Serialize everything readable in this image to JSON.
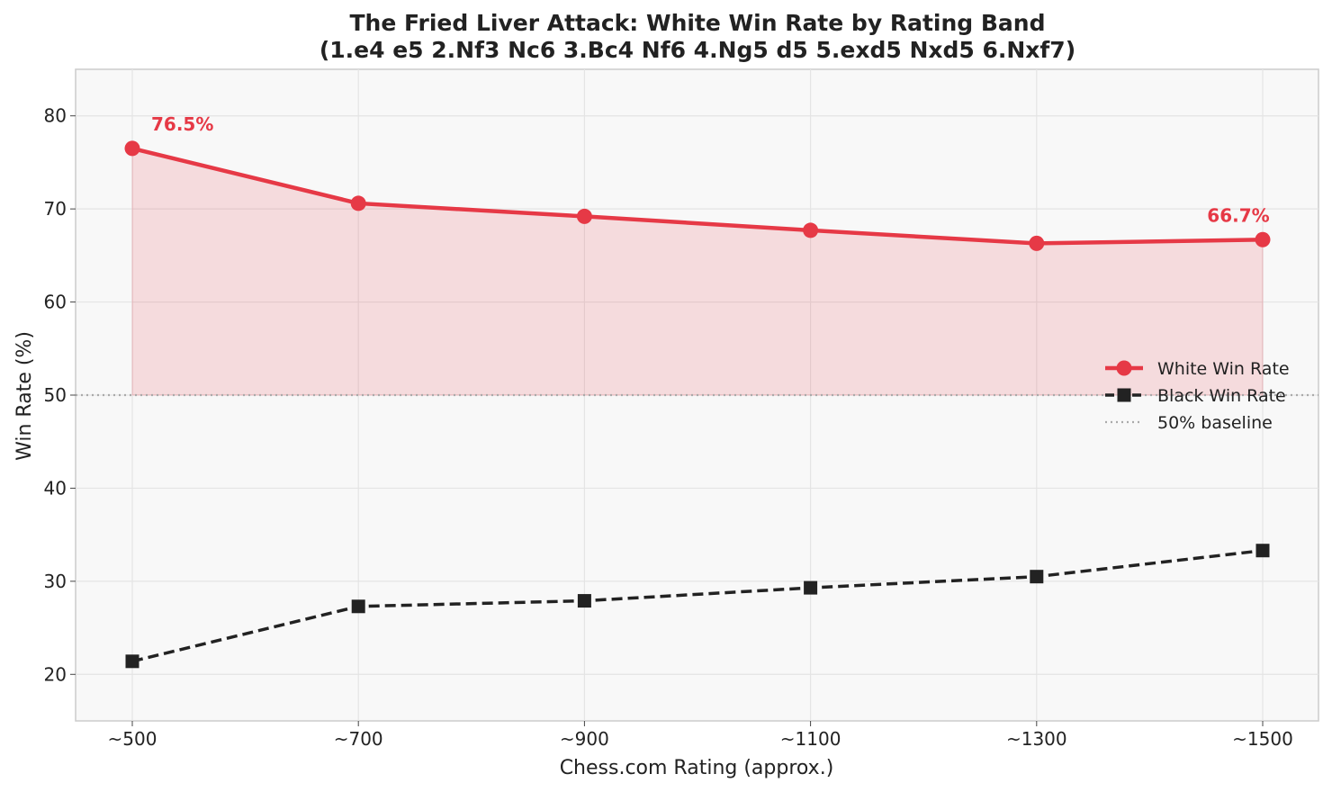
{
  "chart_data": {
    "type": "line",
    "title": "The Fried Liver Attack: White Win Rate by Rating Band",
    "subtitle": "(1.e4 e5 2.Nf3 Nc6 3.Bc4 Nf6 4.Ng5 d5 5.exd5 Nxd5 6.Nxf7)",
    "xlabel": "Chess.com Rating (approx.)",
    "ylabel": "Win Rate (%)",
    "categories": [
      "~500",
      "~700",
      "~900",
      "~1100",
      "~1300",
      "~1500"
    ],
    "ylim": [
      15,
      85
    ],
    "yticks": [
      20,
      30,
      40,
      50,
      60,
      70,
      80
    ],
    "grid": true,
    "legend_position": "center-right",
    "series": [
      {
        "name": "White Win Rate",
        "values": [
          76.5,
          70.6,
          69.2,
          67.7,
          66.3,
          66.7
        ],
        "color": "#e63946",
        "marker": "circle",
        "linestyle": "solid",
        "fill_to_baseline": true
      },
      {
        "name": "Black Win Rate",
        "values": [
          21.4,
          27.3,
          27.9,
          29.3,
          30.5,
          33.3
        ],
        "color": "#222222",
        "marker": "square",
        "linestyle": "dashed"
      }
    ],
    "baseline": {
      "name": "50% baseline",
      "value": 50,
      "color": "#aaaaaa",
      "linestyle": "dotted"
    },
    "annotations": [
      {
        "text": "76.5%",
        "category": "~500",
        "value": 76.5,
        "color": "#e63946"
      },
      {
        "text": "66.7%",
        "category": "~1500",
        "value": 66.7,
        "color": "#e63946"
      }
    ]
  }
}
